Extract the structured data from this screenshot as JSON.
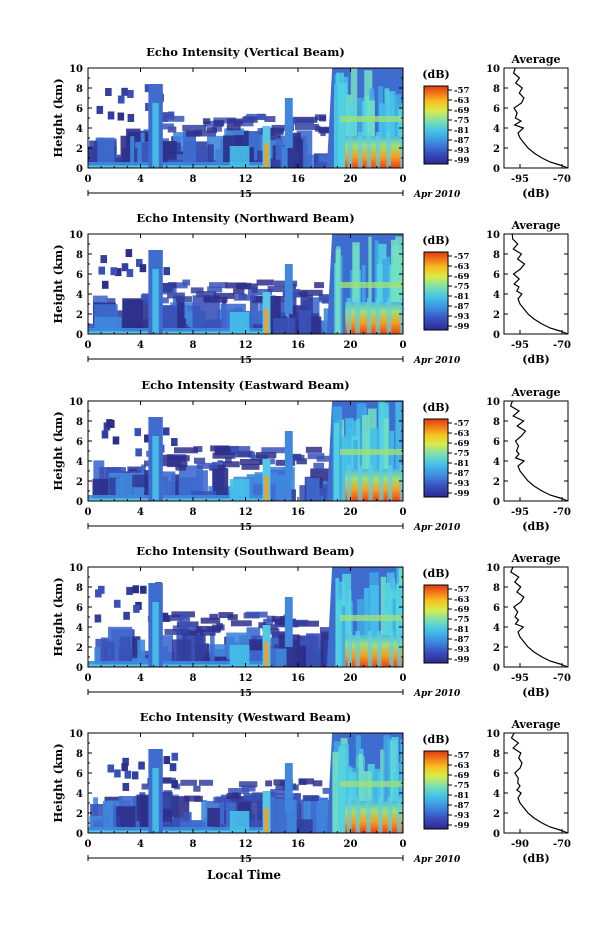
{
  "figure": {
    "xlabel_common": "Local Time",
    "date_label": "Apr 2010",
    "day_label": "15"
  },
  "chart_data": [
    {
      "type": "heatmap",
      "title": "Echo Intensity (Vertical Beam)",
      "ylabel": "Height (km)",
      "x_ticks": [
        "0",
        "4",
        "8",
        "12",
        "16",
        "20",
        "0"
      ],
      "y_ticks": [
        "0",
        "2",
        "4",
        "6",
        "8",
        "10"
      ],
      "xlim": [
        0,
        24
      ],
      "ylim": [
        0,
        10
      ],
      "colorbar": {
        "label": "(dB)",
        "ticks": [
          "-57",
          "-63",
          "-69",
          "-75",
          "-81",
          "-87",
          "-93",
          "-99"
        ]
      },
      "profile": {
        "title": "Average",
        "xlabel": "(dB)",
        "x_ticks": [
          "-95",
          "-70"
        ],
        "y_ticks": [
          "0",
          "2",
          "4",
          "6",
          "8",
          "10"
        ]
      }
    },
    {
      "type": "heatmap",
      "title": "Echo Intensity (Northward Beam)",
      "ylabel": "Height (km)",
      "x_ticks": [
        "0",
        "4",
        "8",
        "12",
        "16",
        "20",
        "0"
      ],
      "y_ticks": [
        "0",
        "2",
        "4",
        "6",
        "8",
        "10"
      ],
      "xlim": [
        0,
        24
      ],
      "ylim": [
        0,
        10
      ],
      "colorbar": {
        "label": "(dB)",
        "ticks": [
          "-57",
          "-63",
          "-69",
          "-75",
          "-81",
          "-87",
          "-93",
          "-99"
        ]
      },
      "profile": {
        "title": "Average",
        "xlabel": "(dB)",
        "x_ticks": [
          "-95",
          "-70"
        ],
        "y_ticks": [
          "0",
          "2",
          "4",
          "6",
          "8",
          "10"
        ]
      }
    },
    {
      "type": "heatmap",
      "title": "Echo Intensity (Eastward Beam)",
      "ylabel": "Height (km)",
      "x_ticks": [
        "0",
        "4",
        "8",
        "12",
        "16",
        "20",
        "0"
      ],
      "y_ticks": [
        "0",
        "2",
        "4",
        "6",
        "8",
        "10"
      ],
      "xlim": [
        0,
        24
      ],
      "ylim": [
        0,
        10
      ],
      "colorbar": {
        "label": "(dB)",
        "ticks": [
          "-57",
          "-63",
          "-69",
          "-75",
          "-81",
          "-87",
          "-93",
          "-99"
        ]
      },
      "profile": {
        "title": "Average",
        "xlabel": "(dB)",
        "x_ticks": [
          "-95",
          "-70"
        ],
        "y_ticks": [
          "0",
          "2",
          "4",
          "6",
          "8",
          "10"
        ]
      }
    },
    {
      "type": "heatmap",
      "title": "Echo Intensity (Southward Beam)",
      "ylabel": "Height (km)",
      "x_ticks": [
        "0",
        "4",
        "8",
        "12",
        "16",
        "20",
        "0"
      ],
      "y_ticks": [
        "0",
        "2",
        "4",
        "6",
        "8",
        "10"
      ],
      "xlim": [
        0,
        24
      ],
      "ylim": [
        0,
        10
      ],
      "colorbar": {
        "label": "(dB)",
        "ticks": [
          "-57",
          "-63",
          "-69",
          "-75",
          "-81",
          "-87",
          "-93",
          "-99"
        ]
      },
      "profile": {
        "title": "Average",
        "xlabel": "(dB)",
        "x_ticks": [
          "-95",
          "-70"
        ],
        "y_ticks": [
          "0",
          "2",
          "4",
          "6",
          "8",
          "10"
        ]
      }
    },
    {
      "type": "heatmap",
      "title": "Echo Intensity (Westward Beam)",
      "ylabel": "Height (km)",
      "x_ticks": [
        "0",
        "4",
        "8",
        "12",
        "16",
        "20",
        "0"
      ],
      "y_ticks": [
        "0",
        "2",
        "4",
        "6",
        "8",
        "10"
      ],
      "xlim": [
        0,
        24
      ],
      "ylim": [
        0,
        10
      ],
      "colorbar": {
        "label": "(dB)",
        "ticks": [
          "-57",
          "-63",
          "-69",
          "-75",
          "-81",
          "-87",
          "-93",
          "-99"
        ]
      },
      "profile": {
        "title": "Average",
        "xlabel": "(dB)",
        "x_ticks": [
          "-90",
          "-70"
        ],
        "y_ticks": [
          "0",
          "2",
          "4",
          "6",
          "8",
          "10"
        ]
      }
    }
  ]
}
